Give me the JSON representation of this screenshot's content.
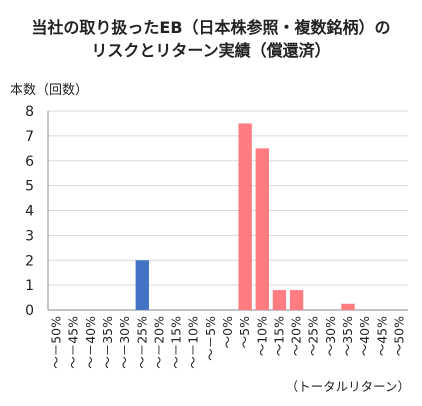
{
  "chart_data": {
    "type": "bar",
    "title": "当社の取り扱ったEB（日本株参照・複数銘柄）の",
    "subtitle": "リスクとリターン実績（償還済）",
    "ylabel": "本数（回数）",
    "xlabel": "（トータルリターン）",
    "ylim": [
      0,
      8
    ],
    "yticks": [
      "0",
      "1",
      "2",
      "3",
      "4",
      "5",
      "6",
      "7",
      "8"
    ],
    "grid": true,
    "categories": [
      "～－50%",
      "～－45%",
      "～－40%",
      "～－35%",
      "～－30%",
      "～－25%",
      "～－20%",
      "～－15%",
      "～－10%",
      "～－5%",
      "～0%",
      "～5%",
      "～10%",
      "～15%",
      "～20%",
      "～25%",
      "～30%",
      "～35%",
      "～40%",
      "～45%",
      "～50%"
    ],
    "values": [
      0,
      0,
      0,
      0,
      0,
      2,
      0,
      0,
      0,
      0,
      0,
      7.5,
      6.5,
      0.8,
      0.8,
      0,
      0,
      0.25,
      0,
      0,
      0
    ],
    "colors": {
      "negative": "#4472c4",
      "positive": "#ff7c80",
      "grid": "#d9d9d9",
      "axis": "#888888"
    }
  }
}
